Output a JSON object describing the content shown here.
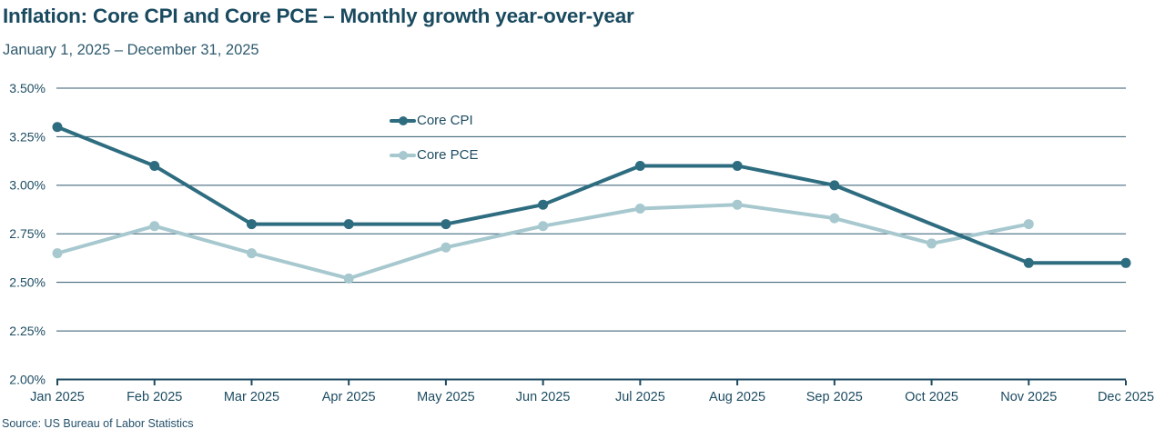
{
  "page": {
    "title": "Inflation: Core CPI and Core PCE – Monthly growth year-over-year",
    "subtitle": "January 1, 2025 – December 31, 2025",
    "source": "Source: US Bureau of Labor Statistics"
  },
  "legend": {
    "position": "top-center",
    "items": [
      {
        "label": "Core CPI",
        "color": "#2E6C80"
      },
      {
        "label": "Core PCE",
        "color": "#A6C8CE"
      }
    ]
  },
  "chart_data": {
    "type": "line",
    "title": "Inflation: Core CPI and Core PCE – Monthly growth year-over-year",
    "subtitle": "January 1, 2025 – December 31, 2025",
    "source": "Source: US Bureau of Labor Statistics",
    "categories": [
      "Jan 2025",
      "Feb 2025",
      "Mar 2025",
      "Apr 2025",
      "May 2025",
      "Jun 2025",
      "Jul 2025",
      "Aug 2025",
      "Sep 2025",
      "Oct 2025",
      "Nov 2025",
      "Dec 2025"
    ],
    "series": [
      {
        "name": "Core CPI",
        "color": "#2E6C80",
        "values": [
          3.3,
          3.1,
          2.8,
          2.8,
          2.8,
          2.9,
          3.1,
          3.1,
          3.0,
          null,
          2.6,
          2.6
        ]
      },
      {
        "name": "Core PCE",
        "color": "#A6C8CE",
        "values": [
          2.65,
          2.79,
          2.65,
          2.52,
          2.68,
          2.79,
          2.88,
          2.9,
          2.83,
          2.7,
          2.8,
          null
        ]
      }
    ],
    "xlabel": "",
    "ylabel": "",
    "ylim": [
      2.0,
      3.5
    ],
    "y_ticks": [
      "3.50%",
      "3.25%",
      "3.00%",
      "2.75%",
      "2.50%",
      "2.25%",
      "2.00%"
    ],
    "y_tick_values": [
      3.5,
      3.25,
      3.0,
      2.75,
      2.5,
      2.25,
      2.0
    ],
    "grid": true,
    "legend_position": "top-center"
  },
  "colors": {
    "background": "#FFFFFF",
    "title_text": "#1A4A5F",
    "subtitle_text": "#2F5B6E",
    "axis_text": "#1D4C62",
    "gridline": "#2F586E",
    "axis_line": "#1C4A60"
  }
}
